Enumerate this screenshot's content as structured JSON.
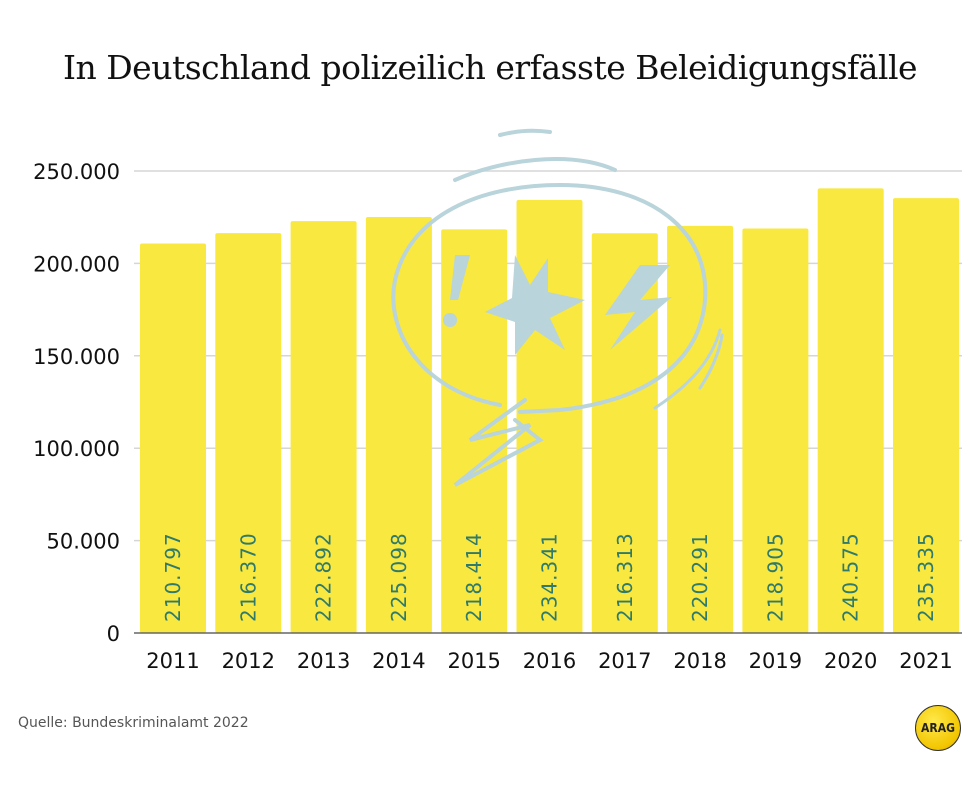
{
  "chart_data": {
    "type": "bar",
    "title": "In Deutschland polizeilich erfasste Beleidigungsfälle",
    "categories": [
      "2011",
      "2012",
      "2013",
      "2014",
      "2015",
      "2016",
      "2017",
      "2018",
      "2019",
      "2020",
      "2021"
    ],
    "values": [
      210797,
      216370,
      222892,
      225098,
      218414,
      234341,
      216313,
      220291,
      218905,
      240575,
      235335
    ],
    "value_labels": [
      "210.797",
      "216.370",
      "222.892",
      "225.098",
      "218.414",
      "234.341",
      "216.313",
      "220.291",
      "218.905",
      "240.575",
      "235.335"
    ],
    "y_ticks": [
      0,
      50000,
      100000,
      150000,
      200000,
      250000
    ],
    "y_tick_labels": [
      "0",
      "50.000",
      "100.000",
      "150.000",
      "200.000",
      "250.000"
    ],
    "ylim": [
      0,
      250000
    ],
    "xlabel": "",
    "ylabel": "",
    "grid": true,
    "bar_color": "#f8e840",
    "label_color": "#2f7a6a",
    "illustration_color": "#b9d4da"
  },
  "source": "Quelle:  Bundeskriminalamt 2022",
  "logo_text": "ARAG"
}
